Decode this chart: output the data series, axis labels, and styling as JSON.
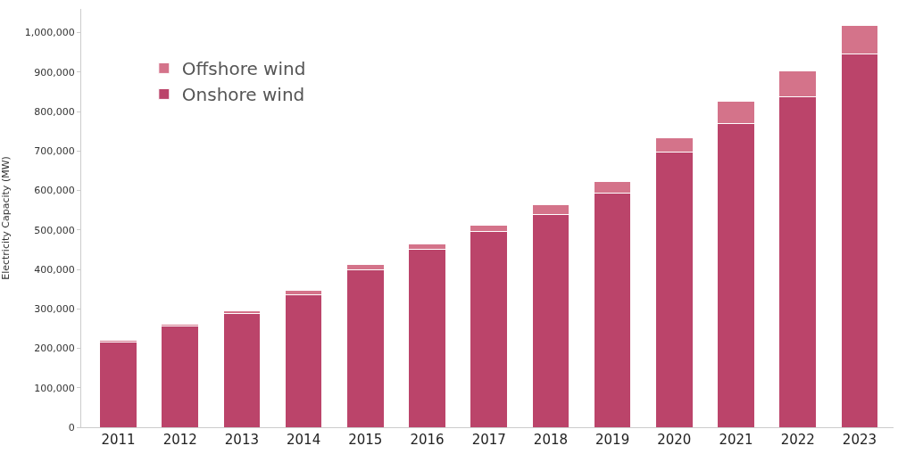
{
  "chart_data": {
    "type": "bar",
    "stacked": true,
    "ylabel": "Electricity Capacity (MW)",
    "categories": [
      "2011",
      "2012",
      "2013",
      "2014",
      "2015",
      "2016",
      "2017",
      "2018",
      "2019",
      "2020",
      "2021",
      "2022",
      "2023"
    ],
    "series": [
      {
        "name": "Onshore wind",
        "color": "#bb446a",
        "values": [
          215000,
          257000,
          288000,
          336000,
          400000,
          451000,
          496000,
          538000,
          593000,
          698000,
          770000,
          838000,
          945000
        ]
      },
      {
        "name": "Offshore wind",
        "color": "#d4738a",
        "values": [
          5000,
          5000,
          8000,
          10000,
          12000,
          13000,
          16000,
          25000,
          30000,
          35000,
          56000,
          65000,
          74000
        ]
      }
    ],
    "ylim": [
      0,
      1060000
    ],
    "yticks": [
      {
        "value": 0,
        "label": "0"
      },
      {
        "value": 100000,
        "label": "100,000"
      },
      {
        "value": 200000,
        "label": "200,000"
      },
      {
        "value": 300000,
        "label": "300,000"
      },
      {
        "value": 400000,
        "label": "400,000"
      },
      {
        "value": 500000,
        "label": "500,000"
      },
      {
        "value": 600000,
        "label": "600,000"
      },
      {
        "value": 700000,
        "label": "700,000"
      },
      {
        "value": 800000,
        "label": "800,000"
      },
      {
        "value": 900000,
        "label": "900,000"
      },
      {
        "value": 1000000,
        "label": "1,000,000"
      }
    ],
    "legend": "top left"
  }
}
